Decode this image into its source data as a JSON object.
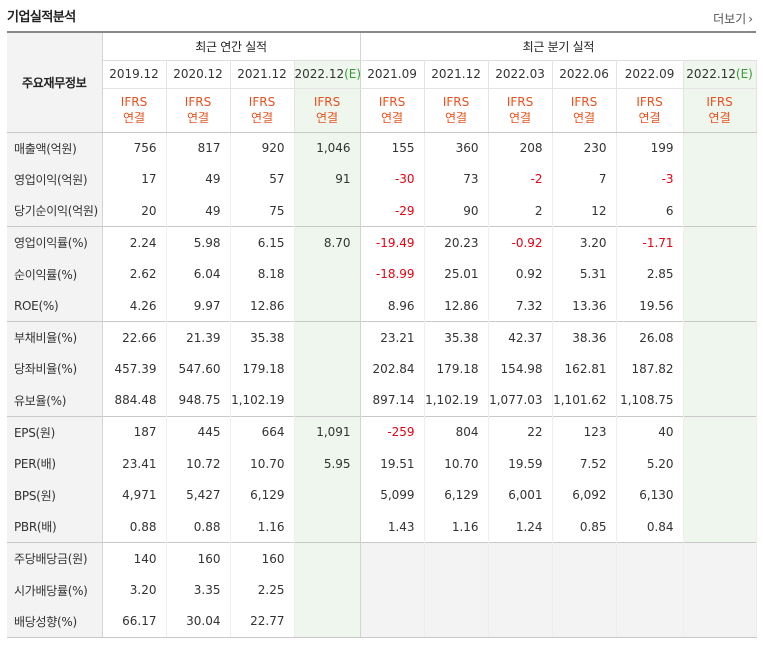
{
  "section_title": "기업실적분석",
  "more_link": "더보기",
  "more_icon": "›",
  "header": {
    "row_label": "주요재무정보",
    "annual_label": "최근 연간 실적",
    "quarterly_label": "최근 분기 실적",
    "annual_periods": [
      {
        "label": "2019.12",
        "est": ""
      },
      {
        "label": "2020.12",
        "est": ""
      },
      {
        "label": "2021.12",
        "est": ""
      },
      {
        "label": "2022.12",
        "est": "(E)"
      }
    ],
    "quarter_periods": [
      {
        "label": "2021.09",
        "est": ""
      },
      {
        "label": "2021.12",
        "est": ""
      },
      {
        "label": "2022.03",
        "est": ""
      },
      {
        "label": "2022.06",
        "est": ""
      },
      {
        "label": "2022.09",
        "est": ""
      },
      {
        "label": "2022.12",
        "est": "(E)"
      }
    ],
    "ifrs_line1": "IFRS",
    "ifrs_line2": "연결"
  },
  "colors": {
    "negative": "#e60012",
    "ifrs": "#e8511e",
    "estimate_bg": "#eef6ee",
    "estimate_mark": "#3a9a3a"
  },
  "rows": [
    {
      "label": "매출액(억원)",
      "annual": [
        "756",
        "817",
        "920",
        "1,046"
      ],
      "quarterly": [
        "155",
        "360",
        "208",
        "230",
        "199",
        ""
      ],
      "group_start": true
    },
    {
      "label": "영업이익(억원)",
      "annual": [
        "17",
        "49",
        "57",
        "91"
      ],
      "quarterly": [
        "-30",
        "73",
        "-2",
        "7",
        "-3",
        ""
      ]
    },
    {
      "label": "당기순이익(억원)",
      "annual": [
        "20",
        "49",
        "75",
        ""
      ],
      "quarterly": [
        "-29",
        "90",
        "2",
        "12",
        "6",
        ""
      ]
    },
    {
      "label": "영업이익률(%)",
      "annual": [
        "2.24",
        "5.98",
        "6.15",
        "8.70"
      ],
      "quarterly": [
        "-19.49",
        "20.23",
        "-0.92",
        "3.20",
        "-1.71",
        ""
      ],
      "group_start": true
    },
    {
      "label": "순이익률(%)",
      "annual": [
        "2.62",
        "6.04",
        "8.18",
        ""
      ],
      "quarterly": [
        "-18.99",
        "25.01",
        "0.92",
        "5.31",
        "2.85",
        ""
      ]
    },
    {
      "label": "ROE(%)",
      "annual": [
        "4.26",
        "9.97",
        "12.86",
        ""
      ],
      "quarterly": [
        "8.96",
        "12.86",
        "7.32",
        "13.36",
        "19.56",
        ""
      ]
    },
    {
      "label": "부채비율(%)",
      "annual": [
        "22.66",
        "21.39",
        "35.38",
        ""
      ],
      "quarterly": [
        "23.21",
        "35.38",
        "42.37",
        "38.36",
        "26.08",
        ""
      ],
      "group_start": true
    },
    {
      "label": "당좌비율(%)",
      "annual": [
        "457.39",
        "547.60",
        "179.18",
        ""
      ],
      "quarterly": [
        "202.84",
        "179.18",
        "154.98",
        "162.81",
        "187.82",
        ""
      ]
    },
    {
      "label": "유보율(%)",
      "annual": [
        "884.48",
        "948.75",
        "1,102.19",
        ""
      ],
      "quarterly": [
        "897.14",
        "1,102.19",
        "1,077.03",
        "1,101.62",
        "1,108.75",
        ""
      ]
    },
    {
      "label": "EPS(원)",
      "annual": [
        "187",
        "445",
        "664",
        "1,091"
      ],
      "quarterly": [
        "-259",
        "804",
        "22",
        "123",
        "40",
        ""
      ],
      "group_start": true
    },
    {
      "label": "PER(배)",
      "annual": [
        "23.41",
        "10.72",
        "10.70",
        "5.95"
      ],
      "quarterly": [
        "19.51",
        "10.70",
        "19.59",
        "7.52",
        "5.20",
        ""
      ]
    },
    {
      "label": "BPS(원)",
      "annual": [
        "4,971",
        "5,427",
        "6,129",
        ""
      ],
      "quarterly": [
        "5,099",
        "6,129",
        "6,001",
        "6,092",
        "6,130",
        ""
      ]
    },
    {
      "label": "PBR(배)",
      "annual": [
        "0.88",
        "0.88",
        "1.16",
        ""
      ],
      "quarterly": [
        "1.43",
        "1.16",
        "1.24",
        "0.85",
        "0.84",
        ""
      ]
    },
    {
      "label": "주당배당금(원)",
      "annual": [
        "140",
        "160",
        "160",
        ""
      ],
      "quarterly": [
        "",
        "",
        "",
        "",
        "",
        ""
      ],
      "group_start": true,
      "no_quarterly": true
    },
    {
      "label": "시가배당률(%)",
      "annual": [
        "3.20",
        "3.35",
        "2.25",
        ""
      ],
      "quarterly": [
        "",
        "",
        "",
        "",
        "",
        ""
      ],
      "no_quarterly": true
    },
    {
      "label": "배당성향(%)",
      "annual": [
        "66.17",
        "30.04",
        "22.77",
        ""
      ],
      "quarterly": [
        "",
        "",
        "",
        "",
        "",
        ""
      ],
      "no_quarterly": true
    }
  ]
}
